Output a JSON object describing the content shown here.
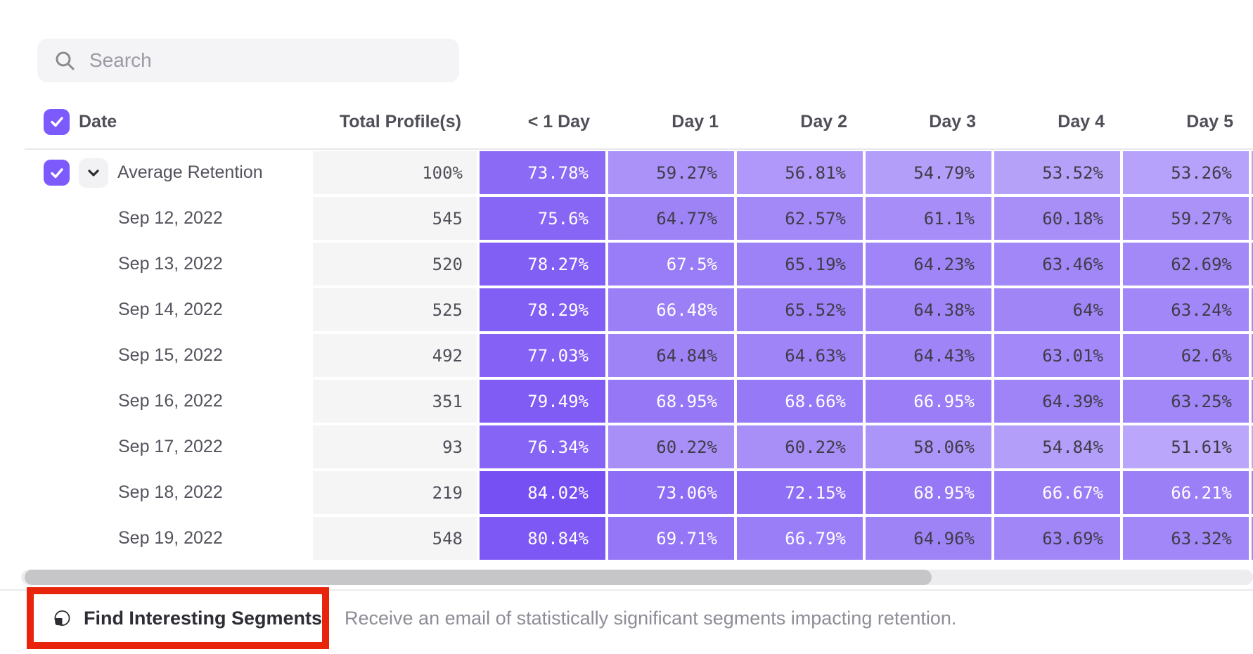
{
  "search": {
    "placeholder": "Search"
  },
  "table": {
    "columns": [
      "Date",
      "Total Profile(s)",
      "< 1 Day",
      "Day 1",
      "Day 2",
      "Day 3",
      "Day 4",
      "Day 5"
    ],
    "rows": [
      {
        "label": "Average Retention",
        "expandable": true,
        "total": "100%",
        "values": [
          "73.78%",
          "59.27%",
          "56.81%",
          "54.79%",
          "53.52%",
          "53.26%"
        ]
      },
      {
        "label": "Sep 12, 2022",
        "expandable": false,
        "total": "545",
        "values": [
          "75.6%",
          "64.77%",
          "62.57%",
          "61.1%",
          "60.18%",
          "59.27%"
        ]
      },
      {
        "label": "Sep 13, 2022",
        "expandable": false,
        "total": "520",
        "values": [
          "78.27%",
          "67.5%",
          "65.19%",
          "64.23%",
          "63.46%",
          "62.69%"
        ]
      },
      {
        "label": "Sep 14, 2022",
        "expandable": false,
        "total": "525",
        "values": [
          "78.29%",
          "66.48%",
          "65.52%",
          "64.38%",
          "64%",
          "63.24%"
        ]
      },
      {
        "label": "Sep 15, 2022",
        "expandable": false,
        "total": "492",
        "values": [
          "77.03%",
          "64.84%",
          "64.63%",
          "64.43%",
          "63.01%",
          "62.6%"
        ]
      },
      {
        "label": "Sep 16, 2022",
        "expandable": false,
        "total": "351",
        "values": [
          "79.49%",
          "68.95%",
          "68.66%",
          "66.95%",
          "64.39%",
          "63.25%"
        ]
      },
      {
        "label": "Sep 17, 2022",
        "expandable": false,
        "total": "93",
        "values": [
          "76.34%",
          "60.22%",
          "60.22%",
          "58.06%",
          "54.84%",
          "51.61%"
        ]
      },
      {
        "label": "Sep 18, 2022",
        "expandable": false,
        "total": "219",
        "values": [
          "84.02%",
          "73.06%",
          "72.15%",
          "68.95%",
          "66.67%",
          "66.21%"
        ]
      },
      {
        "label": "Sep 19, 2022",
        "expandable": false,
        "total": "548",
        "values": [
          "80.84%",
          "69.71%",
          "66.79%",
          "64.96%",
          "63.69%",
          "63.32%"
        ]
      }
    ]
  },
  "footer": {
    "button_label": "Find Interesting Segments",
    "description": "Receive an email of statistically significant segments impacting retention."
  },
  "icons": [
    "search-icon",
    "checkbox-check-icon",
    "chevron-down-icon",
    "segment-pie-icon"
  ],
  "colors": {
    "accent_purple": "#7c5afb",
    "heat_dark": "#744df3",
    "heat_light": "#bba8fa",
    "heat_scale_min": 51,
    "heat_scale_max": 85,
    "white_text_threshold": 66,
    "annotation_red": "#e8250c"
  }
}
